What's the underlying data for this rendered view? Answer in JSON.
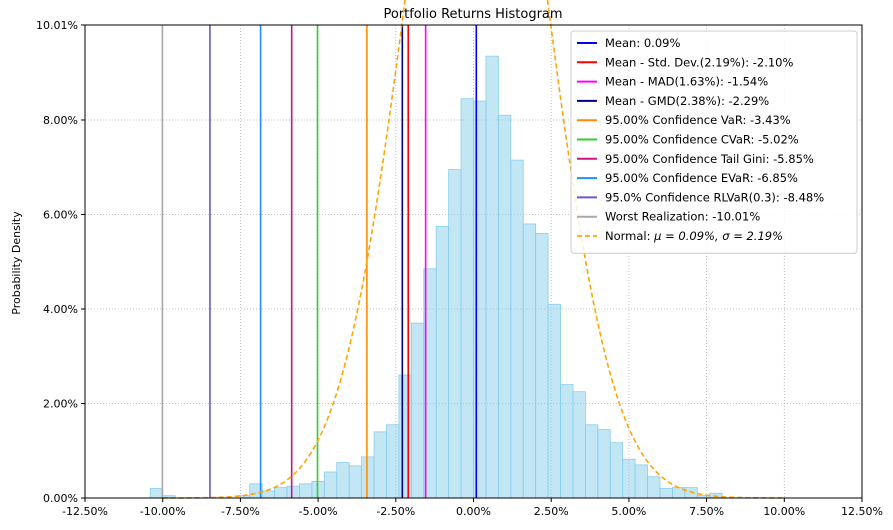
{
  "chart_data": {
    "type": "bar",
    "title": "Portfolio Returns Histogram",
    "xlabel": "",
    "ylabel": "Probability Density",
    "xlim": [
      -12.5,
      12.5
    ],
    "ylim": [
      0,
      10.01
    ],
    "x_ticks": [
      -12.5,
      -10,
      -7.5,
      -5,
      -2.5,
      0,
      2.5,
      5,
      7.5,
      10,
      12.5
    ],
    "x_tick_labels": [
      "-12.50%",
      "-10.00%",
      "-7.50%",
      "-5.00%",
      "-2.50%",
      "0.00%",
      "2.50%",
      "5.00%",
      "7.50%",
      "10.00%",
      "12.50%"
    ],
    "y_ticks": [
      0,
      2,
      4,
      6,
      8,
      10.01
    ],
    "y_tick_labels": [
      "0.00%",
      "2.00%",
      "4.00%",
      "6.00%",
      "8.00%",
      "10.01%"
    ],
    "grid": true,
    "bin_width": 0.4,
    "bins": [
      {
        "x": -10.2,
        "value": 0.2
      },
      {
        "x": -9.8,
        "value": 0.05
      },
      {
        "x": -7.4,
        "value": 0.05
      },
      {
        "x": -7.0,
        "value": 0.3
      },
      {
        "x": -6.6,
        "value": 0.15
      },
      {
        "x": -6.2,
        "value": 0.22
      },
      {
        "x": -5.8,
        "value": 0.25
      },
      {
        "x": -5.4,
        "value": 0.3
      },
      {
        "x": -5.0,
        "value": 0.35
      },
      {
        "x": -4.6,
        "value": 0.55
      },
      {
        "x": -4.2,
        "value": 0.75
      },
      {
        "x": -3.8,
        "value": 0.68
      },
      {
        "x": -3.4,
        "value": 0.87
      },
      {
        "x": -3.0,
        "value": 1.4
      },
      {
        "x": -2.6,
        "value": 1.55
      },
      {
        "x": -2.2,
        "value": 2.6
      },
      {
        "x": -1.8,
        "value": 3.7
      },
      {
        "x": -1.4,
        "value": 4.85
      },
      {
        "x": -1.0,
        "value": 5.75
      },
      {
        "x": -0.6,
        "value": 6.95
      },
      {
        "x": -0.2,
        "value": 8.45
      },
      {
        "x": 0.2,
        "value": 8.4
      },
      {
        "x": 0.6,
        "value": 9.35
      },
      {
        "x": 1.0,
        "value": 8.1
      },
      {
        "x": 1.4,
        "value": 7.15
      },
      {
        "x": 1.8,
        "value": 5.8
      },
      {
        "x": 2.2,
        "value": 5.6
      },
      {
        "x": 2.6,
        "value": 4.1
      },
      {
        "x": 3.0,
        "value": 2.4
      },
      {
        "x": 3.4,
        "value": 2.25
      },
      {
        "x": 3.8,
        "value": 1.55
      },
      {
        "x": 4.2,
        "value": 1.45
      },
      {
        "x": 4.6,
        "value": 1.17
      },
      {
        "x": 5.0,
        "value": 0.82
      },
      {
        "x": 5.4,
        "value": 0.7
      },
      {
        "x": 5.8,
        "value": 0.45
      },
      {
        "x": 6.2,
        "value": 0.2
      },
      {
        "x": 6.6,
        "value": 0.22
      },
      {
        "x": 7.0,
        "value": 0.22
      },
      {
        "x": 7.4,
        "value": 0.05
      },
      {
        "x": 7.8,
        "value": 0.1
      }
    ],
    "hist_color": "#87ceeb",
    "vlines": [
      {
        "label": "Mean: 0.09%",
        "x": 0.09,
        "color": "#0000ff"
      },
      {
        "label": "Mean - Std. Dev.(2.19%): -2.10%",
        "x": -2.1,
        "color": "#ff0000"
      },
      {
        "label": "Mean - MAD(1.63%): -1.54%",
        "x": -1.54,
        "color": "#ff00ff"
      },
      {
        "label": "Mean - GMD(2.38%): -2.29%",
        "x": -2.29,
        "color": "#000080"
      },
      {
        "label": "95.00% Confidence VaR: -3.43%",
        "x": -3.43,
        "color": "#ff8c00"
      },
      {
        "label": "95.00% Confidence CVaR: -5.02%",
        "x": -5.02,
        "color": "#32cd32"
      },
      {
        "label": "95.00% Confidence Tail Gini: -5.85%",
        "x": -5.85,
        "color": "#c71585"
      },
      {
        "label": "95.00% Confidence EVaR: -6.85%",
        "x": -6.85,
        "color": "#1e90ff"
      },
      {
        "label": "95.0% Confidence RLVaR(0.3): -8.48%",
        "x": -8.48,
        "color": "#6a5acd"
      },
      {
        "label": "Worst Realization: -10.01%",
        "x": -10.01,
        "color": "#a9a9a9"
      }
    ],
    "normal_curve": {
      "label_prefix": "Normal: ",
      "label_math": "μ = 0.09%, σ = 2.19%",
      "mu": 0.09,
      "sigma": 2.19,
      "color": "#ffa500",
      "dashed": true
    },
    "legend": "top-right"
  }
}
